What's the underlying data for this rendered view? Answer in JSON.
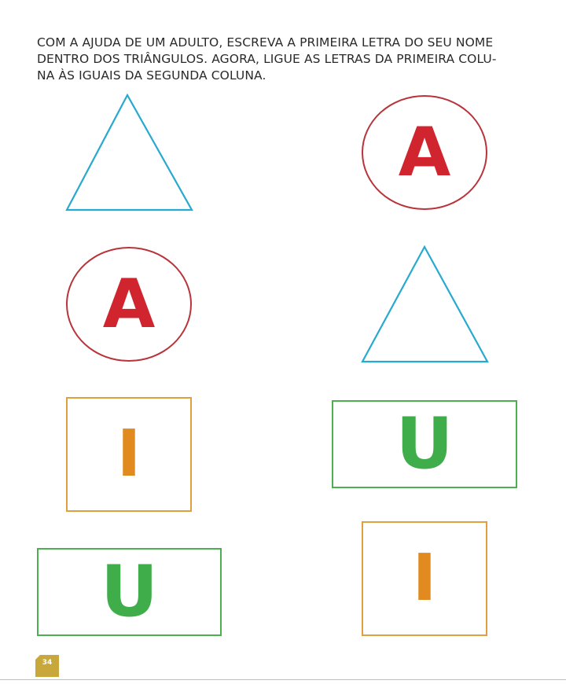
{
  "instructions": {
    "line1": "COM A AJUDA DE UM ADULTO, ESCREVA A PRIMEIRA LETRA DO SEU NOME",
    "line2": "DENTRO DOS TRIÂNGULOS. AGORA, LIGUE AS LETRAS DA PRIMEIRA COLU-",
    "line3": "NA ÀS IGUAIS DA SEGUNDA COLUNA."
  },
  "column1": {
    "row2_letter": "A",
    "row3_letter": "I",
    "row4_letter": "U"
  },
  "column2": {
    "row1_letter": "A",
    "row3_letter": "U",
    "row4_letter": "I"
  },
  "page_number": "34",
  "colors": {
    "triangle": "#27a9d0",
    "oval_border": "#b8333a",
    "letter_a": "#d0252f",
    "letter_i": "#e08a20",
    "letter_u": "#3fae4a",
    "orange_border": "#e0a040",
    "green_border": "#4caf50",
    "page_badge": "#c8a73b"
  }
}
